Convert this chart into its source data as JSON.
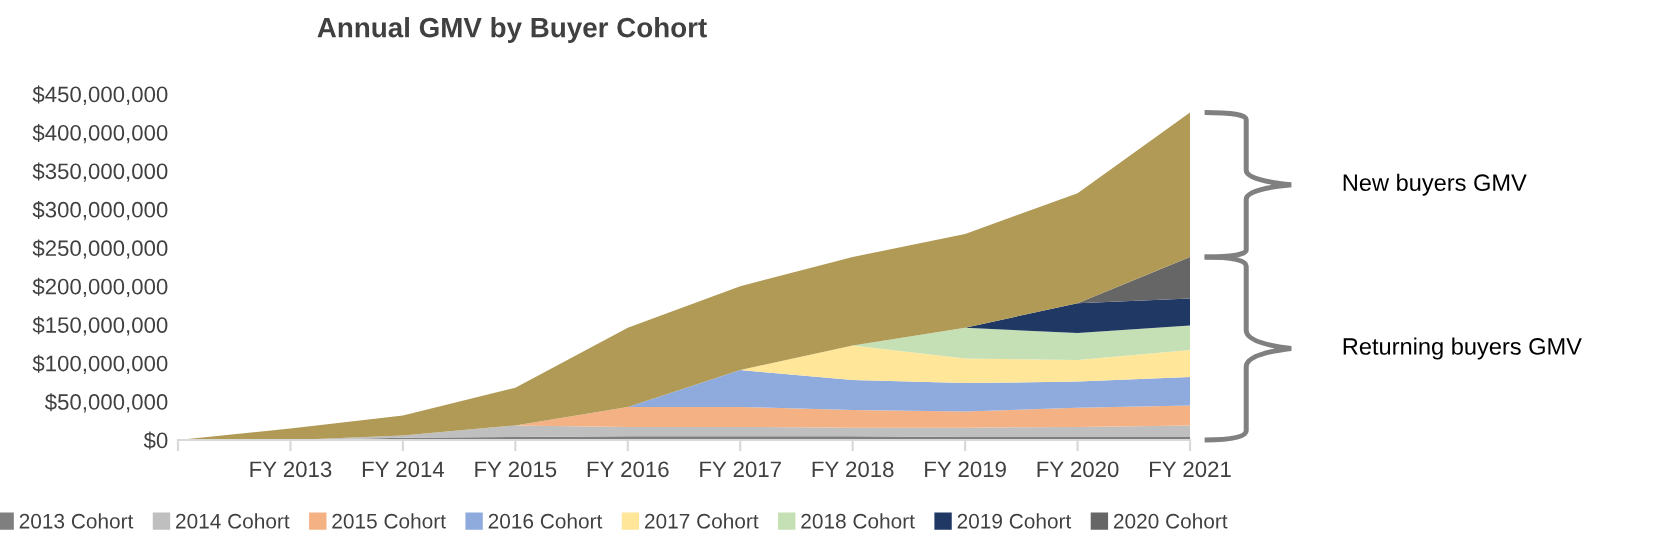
{
  "chart_data": {
    "type": "area",
    "stacked": true,
    "title": "Annual GMV by Buyer Cohort",
    "categories": [
      null,
      "FY 2013",
      "FY 2014",
      "FY 2015",
      "FY 2016",
      "FY 2017",
      "FY 2018",
      "FY 2019",
      "FY 2020",
      "FY 2021"
    ],
    "series": [
      {
        "name": "2013 Cohort",
        "color": "#7f7f7f",
        "values": [
          0,
          0,
          3000000,
          4000000,
          5000000,
          5000000,
          5000000,
          4000000,
          4000000,
          4000000
        ]
      },
      {
        "name": "2014 Cohort",
        "color": "#bfbfbf",
        "values": [
          0,
          0,
          3000000,
          15000000,
          12000000,
          12000000,
          11000000,
          12000000,
          13000000,
          15000000
        ]
      },
      {
        "name": "2015 Cohort",
        "color": "#f4b183",
        "values": [
          0,
          0,
          0,
          0,
          26000000,
          26000000,
          23000000,
          21000000,
          25000000,
          26000000
        ]
      },
      {
        "name": "2016 Cohort",
        "color": "#8faadc",
        "values": [
          0,
          0,
          0,
          0,
          0,
          48000000,
          39000000,
          37000000,
          34000000,
          37000000
        ]
      },
      {
        "name": "2017 Cohort",
        "color": "#ffe699",
        "values": [
          0,
          0,
          0,
          0,
          0,
          0,
          45000000,
          32000000,
          28000000,
          35000000
        ]
      },
      {
        "name": "2018 Cohort",
        "color": "#c5e0b4",
        "values": [
          0,
          0,
          0,
          0,
          0,
          0,
          0,
          40000000,
          35000000,
          32000000
        ]
      },
      {
        "name": "2019 Cohort",
        "color": "#203864",
        "values": [
          0,
          0,
          0,
          0,
          0,
          0,
          0,
          0,
          39000000,
          35000000
        ]
      },
      {
        "name": "2020 Cohort",
        "color": "#666666",
        "values": [
          0,
          0,
          0,
          0,
          0,
          0,
          0,
          0,
          0,
          54000000
        ]
      },
      {
        "color": "#b09a55",
        "values": [
          0,
          15000000,
          26000000,
          49000000,
          103000000,
          109000000,
          115000000,
          122000000,
          143000000,
          188000000
        ]
      }
    ],
    "ylim": [
      0,
      450000000
    ],
    "yticks": [
      {
        "value": 0,
        "label": "$0"
      },
      {
        "value": 50000000,
        "label": "$50,000,000"
      },
      {
        "value": 100000000,
        "label": "$100,000,000"
      },
      {
        "value": 150000000,
        "label": "$150,000,000"
      },
      {
        "value": 200000000,
        "label": "$200,000,000"
      },
      {
        "value": 250000000,
        "label": "$250,000,000"
      },
      {
        "value": 300000000,
        "label": "$300,000,000"
      },
      {
        "value": 350000000,
        "label": "$350,000,000"
      },
      {
        "value": 400000000,
        "label": "$400,000,000"
      },
      {
        "value": 450000000,
        "label": "$450,000,000"
      }
    ],
    "annotations": [
      "New buyers GMV",
      "Returning buyers GMV"
    ],
    "grid": false,
    "legend": "bottom"
  }
}
